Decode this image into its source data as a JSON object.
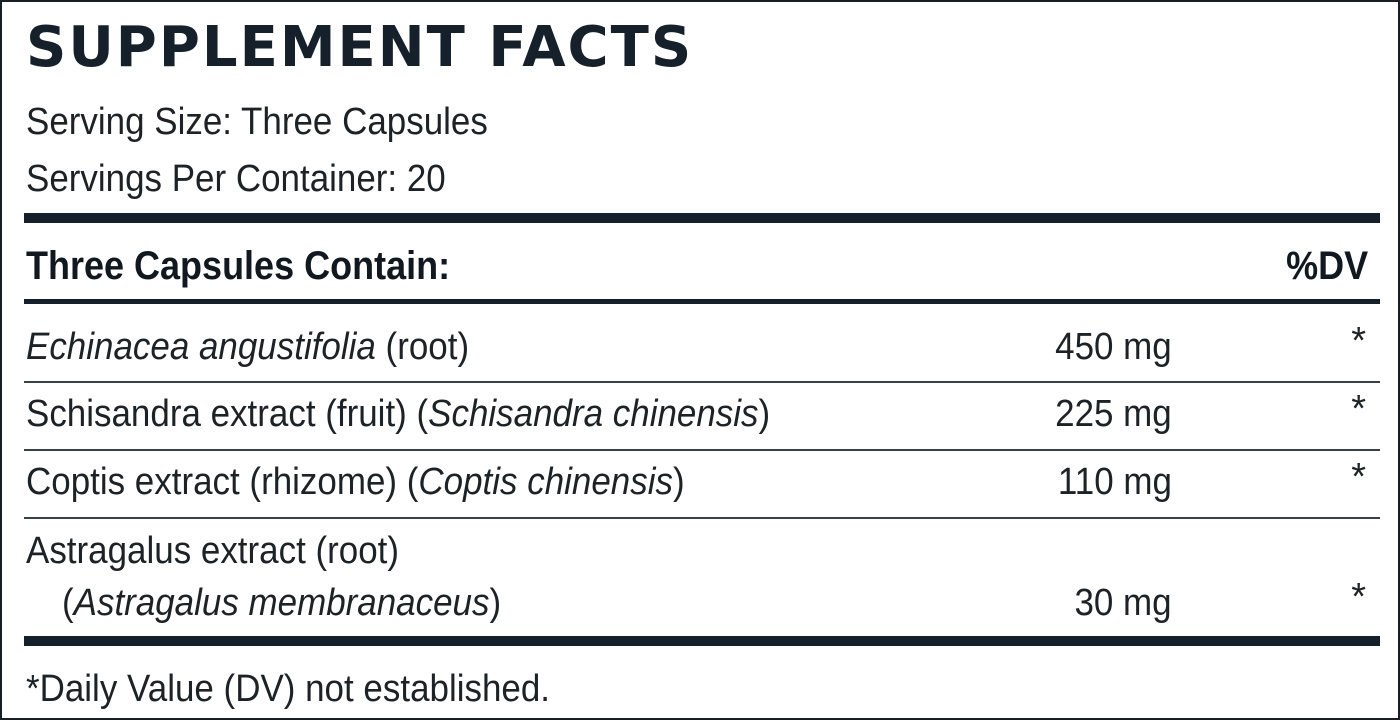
{
  "label": {
    "title": "SUPPLEMENT FACTS",
    "serving_size": "Serving Size: Three Capsules",
    "servings_per_container": "Servings Per Container: 20",
    "column_header": "Three Capsules Contain:",
    "dv_header": "%DV",
    "ingredients": [
      {
        "name_plain_a": "",
        "name_italic": "Echinacea angustifolia",
        "name_plain_b": " (root)",
        "amount": "450 mg",
        "dv": "*"
      },
      {
        "name_plain_a": "Schisandra extract (fruit) (",
        "name_italic": "Schisandra chinensis",
        "name_plain_b": ")",
        "amount": "225 mg",
        "dv": "*"
      },
      {
        "name_plain_a": "Coptis extract (rhizome) (",
        "name_italic": "Coptis chinensis",
        "name_plain_b": ")",
        "amount": "110 mg",
        "dv": "*"
      },
      {
        "name_line1": "Astragalus extract (root)",
        "name_plain_a": "(",
        "name_italic": "Astragalus membranaceus",
        "name_plain_b": ")",
        "amount": "30 mg",
        "dv": "*"
      }
    ],
    "footnote": "*Daily Value (DV) not established."
  }
}
